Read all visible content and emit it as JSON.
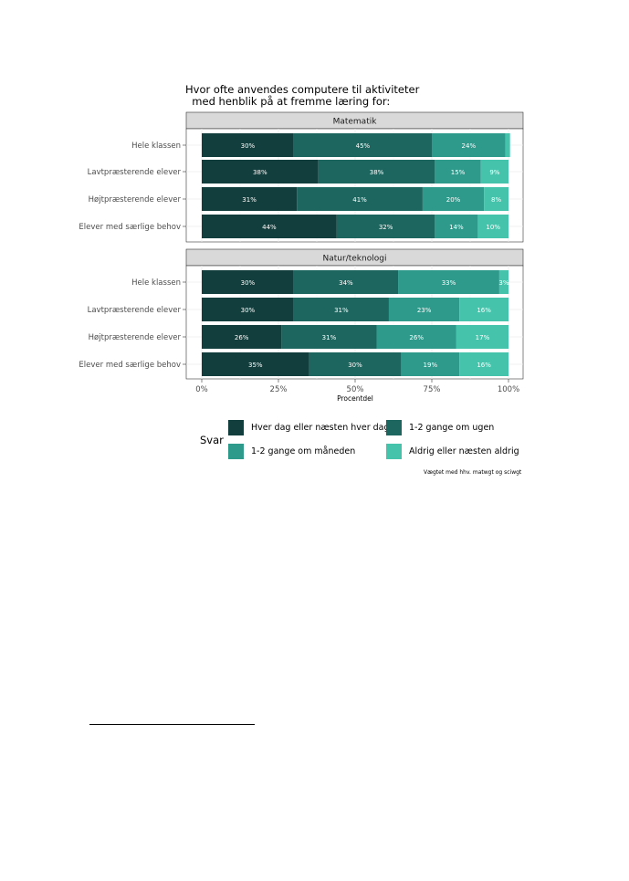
{
  "chart_data": {
    "type": "bar",
    "orientation": "horizontal",
    "stacked": true,
    "title": "Hvor ofte anvendes computere til aktiviteter\n  med henblik på at fremme læring for:",
    "xlabel": "Procentdel",
    "ylabel": "",
    "xlim": [
      0,
      100
    ],
    "x_ticks": [
      "0%",
      "25%",
      "50%",
      "75%",
      "100%"
    ],
    "categories": [
      "Hele klassen",
      "Lavtpræsterende elever",
      "Højtpræsterende elever",
      "Elever med særlige behov"
    ],
    "series_names": [
      "Hver dag eller næsten hver dag",
      "1-2 gange om ugen",
      "1-2 gange om måneden",
      "Aldrig eller næsten aldrig"
    ],
    "colors": [
      "#123f3d",
      "#1d665f",
      "#2e9a8c",
      "#45c3ab"
    ],
    "facets": [
      {
        "name": "Matematik",
        "rows": [
          {
            "values": [
              30,
              45,
              24,
              1.5
            ],
            "labels": [
              "30%",
              "45%",
              "24%",
              ""
            ]
          },
          {
            "values": [
              38,
              38,
              15,
              9
            ],
            "labels": [
              "38%",
              "38%",
              "15%",
              "9%"
            ]
          },
          {
            "values": [
              31,
              41,
              20,
              8
            ],
            "labels": [
              "31%",
              "41%",
              "20%",
              "8%"
            ]
          },
          {
            "values": [
              44,
              32,
              14,
              10
            ],
            "labels": [
              "44%",
              "32%",
              "14%",
              "10%"
            ]
          }
        ]
      },
      {
        "name": "Natur/teknologi",
        "rows": [
          {
            "values": [
              30,
              34,
              33,
              3
            ],
            "labels": [
              "30%",
              "34%",
              "33%",
              "3%"
            ]
          },
          {
            "values": [
              30,
              31,
              23,
              16
            ],
            "labels": [
              "30%",
              "31%",
              "23%",
              "16%"
            ]
          },
          {
            "values": [
              26,
              31,
              26,
              17
            ],
            "labels": [
              "26%",
              "31%",
              "26%",
              "17%"
            ]
          },
          {
            "values": [
              35,
              30,
              19,
              16
            ],
            "labels": [
              "35%",
              "30%",
              "19%",
              "16%"
            ]
          }
        ]
      }
    ],
    "legend": {
      "title": "Svar",
      "placement": "bottom",
      "entries": [
        "Hver dag eller næsten hver dag",
        "1-2 gange om ugen",
        "1-2 gange om måneden",
        "Aldrig eller næsten aldrig"
      ]
    },
    "caption": "Vægtet med hhv. matwgt og sciwgt",
    "grid": true
  }
}
